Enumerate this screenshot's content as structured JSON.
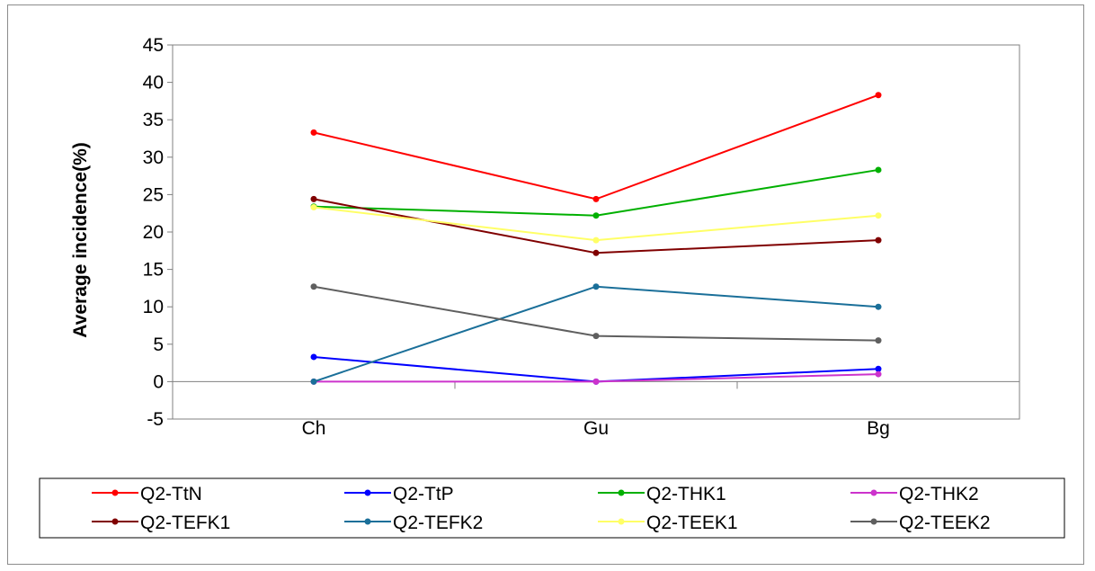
{
  "chart_data": {
    "type": "line",
    "title": "",
    "xlabel": "",
    "ylabel": "Average incidence(%)",
    "ylim": [
      -5,
      45
    ],
    "yticks": [
      "-5",
      "0",
      "5",
      "10",
      "15",
      "20",
      "25",
      "30",
      "35",
      "40",
      "45"
    ],
    "categories": [
      "Ch",
      "Gu",
      "Bg"
    ],
    "grid": false,
    "legend_position": "bottom",
    "series": [
      {
        "name": "Q2-TtN",
        "color": "#ff0000",
        "values": [
          33.3,
          24.4,
          38.3
        ]
      },
      {
        "name": "Q2-TtP",
        "color": "#0000ff",
        "values": [
          3.3,
          0,
          1.7
        ]
      },
      {
        "name": "Q2-THK1",
        "color": "#00b000",
        "values": [
          23.4,
          22.2,
          28.3
        ]
      },
      {
        "name": "Q2-THK2",
        "color": "#cc33cc",
        "values": [
          0,
          0,
          1.0
        ]
      },
      {
        "name": "Q2-TEFK1",
        "color": "#800000",
        "values": [
          24.4,
          17.2,
          18.9
        ]
      },
      {
        "name": "Q2-TEFK2",
        "color": "#1a6f99",
        "values": [
          0,
          12.7,
          10.0
        ]
      },
      {
        "name": "Q2-TEEK1",
        "color": "#ffff66",
        "values": [
          23.3,
          18.9,
          22.2
        ]
      },
      {
        "name": "Q2-TEEK2",
        "color": "#5f5f5f",
        "values": [
          12.7,
          6.1,
          5.5
        ]
      }
    ]
  }
}
